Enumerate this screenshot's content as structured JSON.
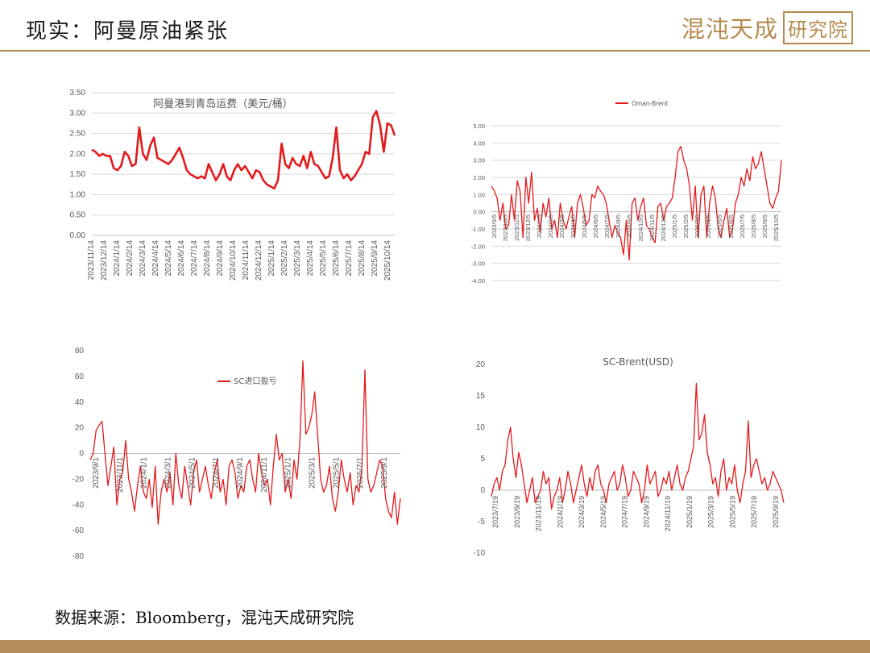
{
  "header": {
    "title": "现实：阿曼原油紧张",
    "logo_main": "混沌天成",
    "logo_box": "研究院"
  },
  "footer": {
    "source": "数据来源：Bloomberg，混沌天成研究院"
  },
  "colors": {
    "series": "#e31a1c",
    "header_rule": "#b08f5a",
    "footer_band": "#b28c5a",
    "logo": "#b58a4e"
  },
  "chart_data": [
    {
      "id": "freight",
      "type": "line",
      "title": "阿曼港到青岛运费（美元/桶）",
      "yticks": [
        "3.50",
        "3.00",
        "2.50",
        "2.00",
        "1.50",
        "1.00",
        "0.50",
        "0.00"
      ],
      "ylim": [
        0,
        3.5
      ],
      "xticks": [
        "2023/11/14",
        "2023/12/14",
        "2024/1/14",
        "2024/2/14",
        "2024/3/14",
        "2024/4/14",
        "2024/5/14",
        "2024/6/14",
        "2024/7/14",
        "2024/8/14",
        "2024/9/14",
        "2024/10/14",
        "2024/11/14",
        "2024/12/14",
        "2025/1/14",
        "2025/2/14",
        "2025/3/14",
        "2025/4/14",
        "2025/5/14",
        "2025/6/14",
        "2025/7/14",
        "2025/8/14",
        "2025/9/14",
        "2025/10/14"
      ],
      "grid": true,
      "legend": "none",
      "values": [
        2.1,
        2.05,
        1.95,
        2.0,
        1.95,
        1.95,
        1.65,
        1.6,
        1.7,
        2.05,
        1.95,
        1.7,
        1.75,
        2.65,
        2.0,
        1.85,
        2.2,
        2.4,
        1.9,
        1.85,
        1.8,
        1.75,
        1.85,
        2.0,
        2.15,
        1.9,
        1.6,
        1.5,
        1.45,
        1.4,
        1.45,
        1.4,
        1.75,
        1.55,
        1.35,
        1.5,
        1.75,
        1.45,
        1.35,
        1.6,
        1.75,
        1.6,
        1.7,
        1.55,
        1.4,
        1.6,
        1.55,
        1.35,
        1.25,
        1.2,
        1.15,
        1.35,
        2.25,
        1.75,
        1.65,
        1.9,
        1.75,
        1.7,
        1.95,
        1.65,
        2.05,
        1.75,
        1.7,
        1.55,
        1.4,
        1.45,
        1.9,
        2.65,
        1.6,
        1.4,
        1.5,
        1.35,
        1.45,
        1.6,
        1.75,
        2.05,
        2.0,
        2.9,
        3.05,
        2.7,
        2.05,
        2.75,
        2.7,
        2.45
      ]
    },
    {
      "id": "oman-brent",
      "type": "line",
      "title": "",
      "legend_label": "Oman-Brent",
      "legend": "top",
      "yticks": [
        "5.00",
        "4.00",
        "3.00",
        "2.00",
        "1.00",
        "0.00",
        "-1.00",
        "-2.00",
        "-3.00",
        "-4.00"
      ],
      "ylim": [
        -4,
        5
      ],
      "xticks": [
        "2023/9/5",
        "2023/10/5",
        "2023/11/5",
        "2023/12/5",
        "2024/1/5",
        "2024/2/5",
        "2024/3/5",
        "2024/4/5",
        "2024/5/5",
        "2024/6/5",
        "2024/7/5",
        "2024/8/5",
        "2024/9/5",
        "2024/10/5",
        "2024/11/5",
        "2024/12/5",
        "2025/1/5",
        "2025/2/5",
        "2025/3/5",
        "2025/4/5",
        "2025/5/5",
        "2025/6/5",
        "2025/7/5",
        "2025/8/5",
        "2025/9/5",
        "2025/10/5"
      ],
      "grid": true,
      "values": [
        1.5,
        1.2,
        0.8,
        -0.5,
        0.5,
        -1.0,
        -0.8,
        1.0,
        -0.5,
        1.8,
        1.2,
        -1.5,
        2.0,
        0.5,
        2.3,
        -0.5,
        0.2,
        -1.2,
        0.5,
        -0.3,
        0.8,
        -1.0,
        -0.5,
        -1.5,
        0.5,
        -0.5,
        -1.0,
        -0.3,
        0.3,
        -1.5,
        0.5,
        1.0,
        0.2,
        -0.8,
        -0.5,
        1.0,
        0.8,
        1.5,
        1.2,
        1.0,
        0.5,
        -0.5,
        -1.5,
        -0.8,
        -1.2,
        -1.5,
        -2.5,
        -0.5,
        -2.8,
        0.5,
        0.8,
        -0.5,
        0.3,
        0.8,
        -0.8,
        -1.0,
        -1.5,
        -1.8,
        0.3,
        0.5,
        -0.5,
        0.3,
        0.5,
        0.8,
        2.0,
        3.5,
        3.8,
        3.0,
        2.5,
        1.5,
        -0.5,
        1.5,
        -1.5,
        1.0,
        1.5,
        -1.5,
        0.5,
        1.5,
        0.8,
        -1.0,
        -1.5,
        -0.5,
        0.2,
        -1.5,
        -1.0,
        0.5,
        1.0,
        2.0,
        1.5,
        2.5,
        1.8,
        3.2,
        2.5,
        2.8,
        3.5,
        2.5,
        1.5,
        0.5,
        0.2,
        0.8,
        1.2,
        3.0
      ]
    },
    {
      "id": "sc-import",
      "type": "line",
      "title": "",
      "legend_label": "SC进口盈亏",
      "legend": "top-center",
      "yticks": [
        "80",
        "60",
        "40",
        "20",
        "0",
        "-20",
        "-40",
        "-60",
        "-80"
      ],
      "ylim": [
        -80,
        80
      ],
      "xticks": [
        "2023/9/1",
        "2023/11/1",
        "2024/1/1",
        "2024/3/1",
        "2024/5/1",
        "2024/7/1",
        "2024/9/1",
        "2024/11/1",
        "2025/1/1",
        "2025/3/1",
        "2025/5/1",
        "2025/7/1",
        "2025/9/1"
      ],
      "grid": false,
      "values": [
        -5,
        0,
        18,
        22,
        25,
        0,
        -25,
        -10,
        5,
        -40,
        -20,
        -15,
        10,
        -20,
        -30,
        -45,
        -25,
        -10,
        -30,
        -35,
        -20,
        -42,
        -10,
        -55,
        -30,
        -20,
        -30,
        -15,
        -40,
        0,
        -25,
        -35,
        -10,
        -25,
        -40,
        -15,
        -5,
        -30,
        -20,
        -10,
        -25,
        -35,
        -15,
        -5,
        -30,
        -20,
        -40,
        -10,
        -5,
        -15,
        -35,
        -25,
        -30,
        -10,
        -5,
        -20,
        -30,
        0,
        -15,
        -25,
        -20,
        -40,
        -10,
        15,
        -5,
        0,
        -30,
        -20,
        -35,
        -5,
        -20,
        10,
        72,
        15,
        20,
        30,
        48,
        15,
        -20,
        -30,
        -25,
        -10,
        -35,
        -45,
        -30,
        -5,
        -20,
        -30,
        -15,
        -40,
        -25,
        -30,
        -10,
        65,
        -20,
        -30,
        -25,
        -15,
        -5,
        -10,
        -35,
        -45,
        -50,
        -30,
        -55,
        -35
      ]
    },
    {
      "id": "sc-brent",
      "type": "line",
      "title": "SC-Brent(USD)",
      "legend": "none",
      "yticks": [
        "20",
        "15",
        "10",
        "5",
        "0",
        "-5",
        "-10"
      ],
      "ylim": [
        -10,
        20
      ],
      "xticks": [
        "2023/7/19",
        "2023/9/19",
        "2023/11/19",
        "2024/1/19",
        "2024/3/19",
        "2024/5/19",
        "2024/7/19",
        "2024/9/19",
        "2024/11/19",
        "2025/1/19",
        "2025/3/19",
        "2025/5/19",
        "2025/7/19",
        "2025/9/19"
      ],
      "grid": false,
      "values": [
        -1,
        1,
        2,
        0,
        3,
        4,
        8,
        10,
        5,
        2,
        6,
        4,
        1,
        -2,
        0,
        2,
        -2,
        -1,
        0,
        3,
        1,
        2,
        -3,
        -1,
        0,
        2,
        -2,
        0,
        3,
        1,
        -2,
        0,
        2,
        4,
        1,
        -1,
        2,
        0,
        3,
        4,
        1,
        0,
        -2,
        1,
        2,
        3,
        0,
        1,
        4,
        2,
        -1,
        0,
        3,
        2,
        1,
        -2,
        0,
        4,
        1,
        2,
        3,
        -1,
        0,
        2,
        1,
        3,
        0,
        2,
        4,
        1,
        0,
        2,
        3,
        5,
        7,
        17,
        8,
        9,
        12,
        6,
        4,
        1,
        2,
        -1,
        3,
        5,
        0,
        2,
        1,
        4,
        0,
        -2,
        1,
        3,
        11,
        2,
        4,
        5,
        3,
        1,
        2,
        0,
        1,
        3,
        2,
        1,
        0,
        -2
      ]
    }
  ]
}
